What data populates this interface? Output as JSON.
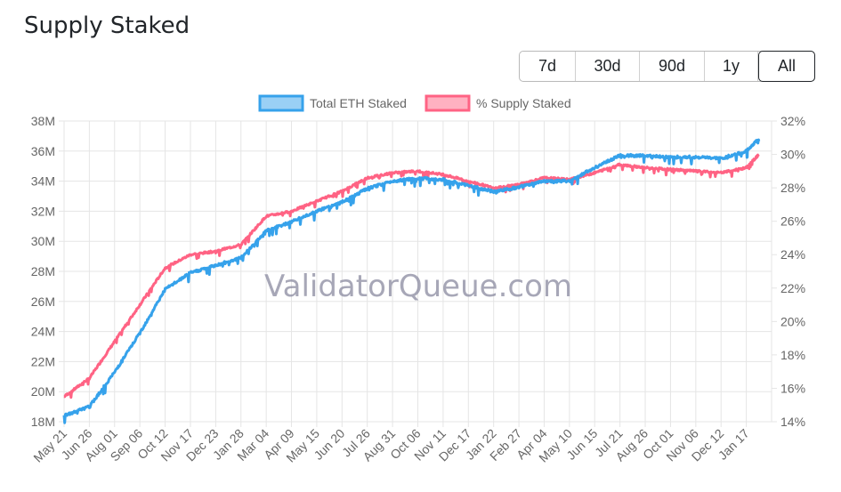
{
  "page": {
    "title": "Supply Staked",
    "watermark": "ValidatorQueue.com",
    "range_buttons": [
      {
        "label": "7d",
        "active": false
      },
      {
        "label": "30d",
        "active": false
      },
      {
        "label": "90d",
        "active": false
      },
      {
        "label": "1y",
        "active": false
      },
      {
        "label": "All",
        "active": true
      }
    ]
  },
  "chart_data": {
    "type": "line",
    "title": "Supply Staked",
    "legend": [
      "Total ETH Staked",
      "% Supply Staked"
    ],
    "legend_placement": "top-center",
    "grid": true,
    "y_left": {
      "min": 18,
      "max": 38,
      "ticks": [
        "18M",
        "20M",
        "22M",
        "24M",
        "26M",
        "28M",
        "30M",
        "32M",
        "34M",
        "36M",
        "38M"
      ]
    },
    "y_right": {
      "min": 14,
      "max": 32,
      "ticks": [
        "14%",
        "16%",
        "18%",
        "20%",
        "22%",
        "24%",
        "26%",
        "28%",
        "30%",
        "32%"
      ]
    },
    "x_ticks": [
      "May 21",
      "Jun 26",
      "Aug 01",
      "Sep 06",
      "Oct 12",
      "Nov 17",
      "Dec 23",
      "Jan 28",
      "Mar 04",
      "Apr 09",
      "May 15",
      "Jun 20",
      "Jul 26",
      "Aug 31",
      "Oct 06",
      "Nov 11",
      "Dec 17",
      "Jan 22",
      "Feb 27",
      "Apr 04",
      "May 10",
      "Jun 15",
      "Jul 21",
      "Aug 26",
      "Oct 01",
      "Nov 06",
      "Dec 12",
      "Jan 17"
    ],
    "colors": {
      "total": "#36a2eb",
      "total_fill": "#9ad0f5",
      "pct": "#ff6384",
      "pct_fill": "#ffb1c1"
    },
    "series": [
      {
        "name": "Total ETH Staked",
        "axis": "left",
        "unit": "M ETH",
        "x_index": [
          0,
          1,
          2,
          3,
          4,
          5,
          6,
          7,
          8,
          9,
          10,
          11,
          12,
          13,
          14,
          15,
          16,
          17,
          18,
          19,
          20,
          21,
          22,
          23,
          24,
          25,
          26,
          27,
          27.5
        ],
        "values": [
          18.4,
          19.0,
          21.3,
          23.9,
          26.8,
          27.9,
          28.4,
          28.9,
          30.7,
          31.3,
          32.0,
          32.6,
          33.5,
          34.0,
          34.2,
          34.1,
          33.7,
          33.3,
          33.6,
          34.0,
          34.0,
          34.9,
          35.7,
          35.7,
          35.6,
          35.6,
          35.5,
          36.0,
          36.8
        ]
      },
      {
        "name": "% Supply Staked",
        "axis": "right",
        "unit": "%",
        "x_index": [
          0,
          1,
          2,
          3,
          4,
          5,
          6,
          7,
          8,
          9,
          10,
          11,
          12,
          13,
          14,
          15,
          16,
          17,
          18,
          19,
          20,
          21,
          22,
          23,
          24,
          25,
          26,
          27,
          27.5
        ],
        "values": [
          15.5,
          16.6,
          18.8,
          21.0,
          23.2,
          24.0,
          24.2,
          24.6,
          26.3,
          26.6,
          27.2,
          27.8,
          28.6,
          28.9,
          29.0,
          28.8,
          28.4,
          28.0,
          28.2,
          28.6,
          28.5,
          28.9,
          29.4,
          29.2,
          29.1,
          29.0,
          28.9,
          29.2,
          30.0
        ]
      }
    ]
  }
}
